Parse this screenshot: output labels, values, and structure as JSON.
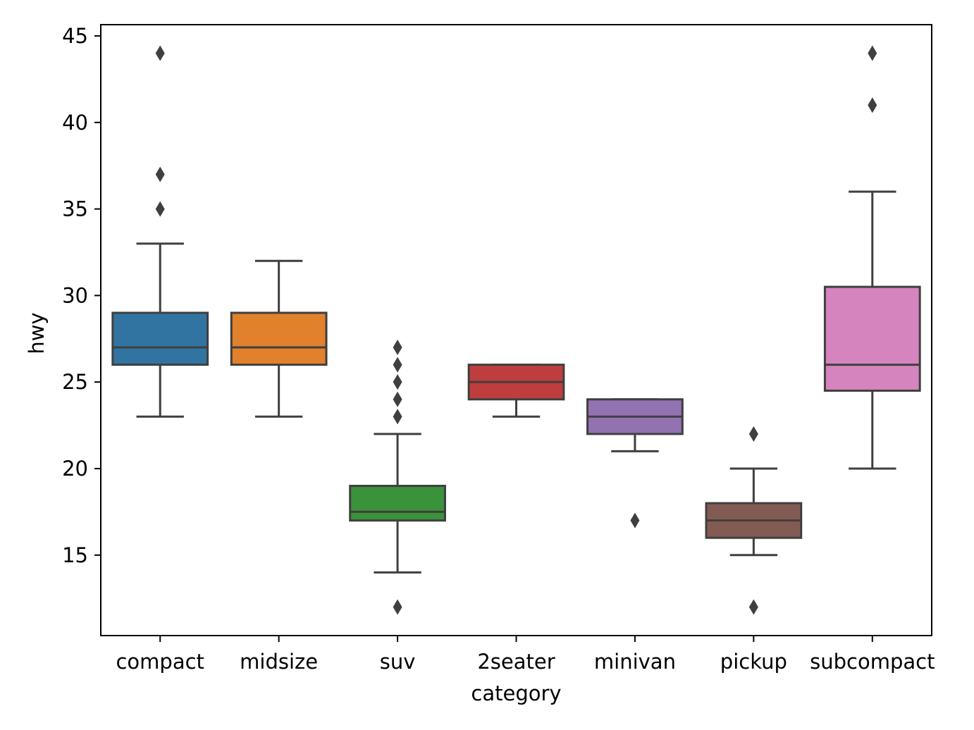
{
  "chart_data": {
    "type": "box",
    "title": "",
    "xlabel": "category",
    "ylabel": "hwy",
    "ylim": [
      10.35,
      45.65
    ],
    "yticks": [
      15,
      20,
      25,
      30,
      35,
      40,
      45
    ],
    "grid": false,
    "legend": "none",
    "categories": [
      "compact",
      "midsize",
      "suv",
      "2seater",
      "minivan",
      "pickup",
      "subcompact"
    ],
    "boxes": [
      {
        "category": "compact",
        "whisker_low": 23,
        "q1": 26,
        "median": 27,
        "q3": 29,
        "whisker_high": 33,
        "outliers": [
          35,
          37,
          44
        ],
        "color": "#3274a1"
      },
      {
        "category": "midsize",
        "whisker_low": 23,
        "q1": 26,
        "median": 27,
        "q3": 29,
        "whisker_high": 32,
        "outliers": [],
        "color": "#e1812c"
      },
      {
        "category": "suv",
        "whisker_low": 14,
        "q1": 17,
        "median": 17.5,
        "q3": 19,
        "whisker_high": 22,
        "outliers": [
          12,
          23,
          24,
          25,
          26,
          27
        ],
        "color": "#3a923a"
      },
      {
        "category": "2seater",
        "whisker_low": 23,
        "q1": 24,
        "median": 25,
        "q3": 26,
        "whisker_high": 26,
        "outliers": [],
        "color": "#c03d3e"
      },
      {
        "category": "minivan",
        "whisker_low": 21,
        "q1": 22,
        "median": 23,
        "q3": 24,
        "whisker_high": 24,
        "outliers": [
          17
        ],
        "color": "#9372b2"
      },
      {
        "category": "pickup",
        "whisker_low": 15,
        "q1": 16,
        "median": 17,
        "q3": 18,
        "whisker_high": 20,
        "outliers": [
          12,
          22
        ],
        "color": "#845b53"
      },
      {
        "category": "subcompact",
        "whisker_low": 20,
        "q1": 24.5,
        "median": 26,
        "q3": 30.5,
        "whisker_high": 36,
        "outliers": [
          41,
          44
        ],
        "color": "#d684bd"
      }
    ],
    "line_color": "#3f3f3f"
  }
}
